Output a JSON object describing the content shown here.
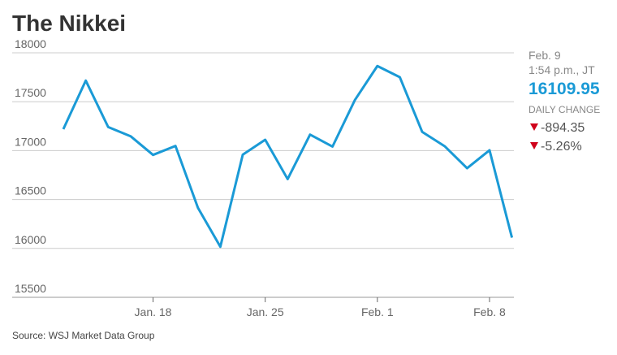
{
  "chart_data": {
    "type": "line",
    "title": "The Nikkei",
    "categories": [
      null,
      null,
      null,
      null,
      "Jan. 18",
      null,
      null,
      null,
      null,
      "Jan. 25",
      null,
      null,
      null,
      null,
      "Feb. 1",
      null,
      null,
      null,
      null,
      "Feb. 8",
      null
    ],
    "values": [
      17219,
      17716,
      17241,
      17147,
      16956,
      17048,
      16416,
      16017,
      16959,
      17111,
      16709,
      17164,
      17041,
      17518,
      17865,
      17751,
      17191,
      17045,
      16820,
      17004,
      16110
    ],
    "color": "#1a9ad6",
    "ylim": [
      15500,
      18000
    ],
    "yticks": [
      15500,
      16000,
      16500,
      17000,
      17500,
      18000
    ],
    "grid": true,
    "source": "Source: WSJ Market Data Group"
  },
  "quote": {
    "date": "Feb. 9",
    "time": "1:54 p.m., JT",
    "price": "16109.95",
    "change_label": "DAILY CHANGE",
    "change": "-894.35",
    "change_pct": "-5.26%"
  }
}
